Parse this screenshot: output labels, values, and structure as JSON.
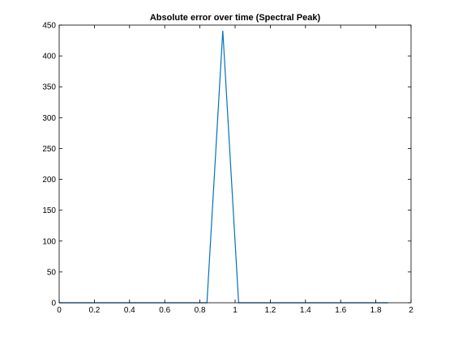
{
  "chart_data": {
    "type": "line",
    "title": "Absolute error over time (Spectral Peak)",
    "xlabel": "",
    "ylabel": "",
    "xlim": [
      0,
      2
    ],
    "ylim": [
      0,
      450
    ],
    "xticks": [
      "0",
      "0.2",
      "0.4",
      "0.6",
      "0.8",
      "1",
      "1.2",
      "1.4",
      "1.6",
      "1.8",
      "2"
    ],
    "yticks": [
      "0",
      "50",
      "100",
      "150",
      "200",
      "250",
      "300",
      "350",
      "400",
      "450"
    ],
    "grid": false,
    "series": [
      {
        "color": "#0072bd",
        "x": [
          0,
          0.1,
          0.2,
          0.3,
          0.4,
          0.5,
          0.6,
          0.7,
          0.8,
          0.84,
          0.93,
          1.02,
          1.1,
          1.2,
          1.3,
          1.4,
          1.5,
          1.6,
          1.7,
          1.8,
          1.87
        ],
        "y": [
          0,
          0,
          0,
          0,
          0,
          0,
          0,
          0,
          0,
          0,
          441,
          0,
          0,
          0,
          0,
          0,
          0,
          0,
          0,
          0,
          0
        ]
      }
    ]
  }
}
